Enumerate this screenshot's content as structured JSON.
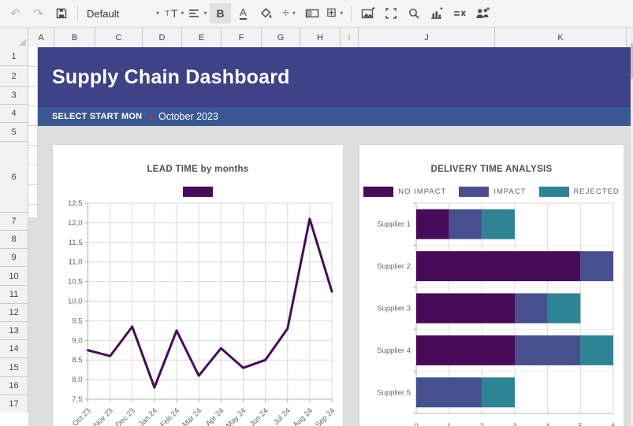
{
  "toolbar": {
    "style_selector": "Default",
    "icons": {
      "undo": "↶",
      "redo": "↷",
      "caret": "▾",
      "font_size_small": "T",
      "font_size_big": "T",
      "bold": "B",
      "underline": "A",
      "number_format": "÷",
      "borders": "⊞"
    }
  },
  "spreadsheet": {
    "columns": [
      "A",
      "B",
      "C",
      "D",
      "E",
      "F",
      "G",
      "H",
      "I",
      "J",
      "K"
    ],
    "rows": [
      "1",
      "2",
      "3",
      "4",
      "5",
      "6",
      "7",
      "8",
      "9",
      "10",
      "11",
      "12",
      "13",
      "14",
      "15",
      "16",
      "17"
    ]
  },
  "dashboard": {
    "title": "Supply Chain Dashboard",
    "filter_label": "SELECT START MON",
    "overflow_marker": "▲",
    "filter_value": "October 2023",
    "colors": {
      "title_band": "#3e4287",
      "filter_band": "#3a5894",
      "canvas": "#dedede"
    }
  },
  "chart_data": [
    {
      "type": "line",
      "title": "LEAD TIME by months",
      "x": [
        "Oct 23",
        "Nov 23",
        "Dec 23",
        "Jan 24",
        "Feb 24",
        "Mar 24",
        "Apr 24",
        "May 24",
        "Jun 24",
        "Jul 24",
        "Aug 24",
        "Sep 24"
      ],
      "values": [
        8.75,
        8.6,
        9.35,
        7.8,
        9.25,
        8.1,
        8.8,
        8.3,
        8.5,
        9.3,
        12.1,
        10.25
      ],
      "ylim": [
        7.5,
        12.5
      ],
      "ytick_step": 0.5,
      "y_tick_labels": [
        "7,5",
        "8,0",
        "8,5",
        "9,0",
        "9,5",
        "10,0",
        "10,5",
        "11,0",
        "11,5",
        "12,0",
        "12,5"
      ],
      "line_color": "#470b59",
      "grid": true,
      "legend": [
        {
          "label": "",
          "color": "#470b59"
        }
      ],
      "legend_position": "top"
    },
    {
      "type": "bar",
      "orientation": "horizontal",
      "title": "DELIVERY TIME ANALYSIS",
      "categories": [
        "Supplier 1",
        "Supplier 2",
        "Supplier 3",
        "Supplier 4",
        "Supplier 5"
      ],
      "series": [
        {
          "name": "NO IMPACT",
          "color": "#470b59",
          "values": [
            1,
            5,
            3,
            3,
            0
          ]
        },
        {
          "name": "IMPACT",
          "color": "#474f8f",
          "values": [
            1,
            1,
            1,
            2,
            2
          ]
        },
        {
          "name": "REJECTED",
          "color": "#2f8494",
          "values": [
            1,
            0,
            1,
            1,
            1
          ]
        }
      ],
      "xlim": [
        0,
        6
      ],
      "x_ticks": [
        "0",
        "1",
        "2",
        "3",
        "4",
        "5",
        "6"
      ],
      "grid": true,
      "legend_position": "top"
    }
  ]
}
